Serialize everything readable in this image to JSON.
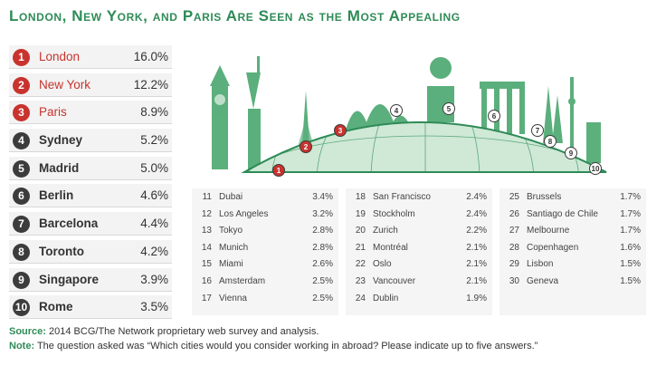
{
  "title": "London, New York, and Paris Are Seen as the Most Appealing",
  "colors": {
    "accent_green": "#2e8b57",
    "top3_red": "#c8332e",
    "badge_dark": "#3c3c3c",
    "globe_green": "#4aa76e"
  },
  "chart_data": {
    "type": "table",
    "title": "London, New York, and Paris Are Seen as the Most Appealing",
    "top_ten": [
      {
        "rank": "1",
        "city": "London",
        "pct": "16.0%",
        "value": 16.0
      },
      {
        "rank": "2",
        "city": "New York",
        "pct": "12.2%",
        "value": 12.2
      },
      {
        "rank": "3",
        "city": "Paris",
        "pct": "8.9%",
        "value": 8.9
      },
      {
        "rank": "4",
        "city": "Sydney",
        "pct": "5.2%",
        "value": 5.2
      },
      {
        "rank": "5",
        "city": "Madrid",
        "pct": "5.0%",
        "value": 5.0
      },
      {
        "rank": "6",
        "city": "Berlin",
        "pct": "4.6%",
        "value": 4.6
      },
      {
        "rank": "7",
        "city": "Barcelona",
        "pct": "4.4%",
        "value": 4.4
      },
      {
        "rank": "8",
        "city": "Toronto",
        "pct": "4.2%",
        "value": 4.2
      },
      {
        "rank": "9",
        "city": "Singapore",
        "pct": "3.9%",
        "value": 3.9
      },
      {
        "rank": "10",
        "city": "Rome",
        "pct": "3.5%",
        "value": 3.5
      }
    ],
    "more_cities": [
      [
        {
          "rank": "11",
          "city": "Dubai",
          "pct": "3.4%"
        },
        {
          "rank": "12",
          "city": "Los Angeles",
          "pct": "3.2%"
        },
        {
          "rank": "13",
          "city": "Tokyo",
          "pct": "2.8%"
        },
        {
          "rank": "14",
          "city": "Munich",
          "pct": "2.8%"
        },
        {
          "rank": "15",
          "city": "Miami",
          "pct": "2.6%"
        },
        {
          "rank": "16",
          "city": "Amsterdam",
          "pct": "2.5%"
        },
        {
          "rank": "17",
          "city": "Vienna",
          "pct": "2.5%"
        }
      ],
      [
        {
          "rank": "18",
          "city": "San Francisco",
          "pct": "2.4%"
        },
        {
          "rank": "19",
          "city": "Stockholm",
          "pct": "2.4%"
        },
        {
          "rank": "20",
          "city": "Zurich",
          "pct": "2.2%"
        },
        {
          "rank": "21",
          "city": "Montréal",
          "pct": "2.1%"
        },
        {
          "rank": "22",
          "city": "Oslo",
          "pct": "2.1%"
        },
        {
          "rank": "23",
          "city": "Vancouver",
          "pct": "2.1%"
        },
        {
          "rank": "24",
          "city": "Dublin",
          "pct": "1.9%"
        }
      ],
      [
        {
          "rank": "25",
          "city": "Brussels",
          "pct": "1.7%"
        },
        {
          "rank": "26",
          "city": "Santiago de Chile",
          "pct": "1.7%"
        },
        {
          "rank": "27",
          "city": "Melbourne",
          "pct": "1.7%"
        },
        {
          "rank": "28",
          "city": "Copenhagen",
          "pct": "1.6%"
        },
        {
          "rank": "29",
          "city": "Lisbon",
          "pct": "1.5%"
        },
        {
          "rank": "30",
          "city": "Geneva",
          "pct": "1.5%"
        }
      ]
    ]
  },
  "globe_markers": [
    "1",
    "2",
    "3",
    "4",
    "5",
    "6",
    "7",
    "8",
    "9",
    "10"
  ],
  "source": {
    "label": "Source:",
    "text": " 2014 BCG/The Network proprietary web survey and analysis."
  },
  "note": {
    "label": "Note:",
    "text": " The question asked was “Which cities would you consider working in abroad? Please indicate up to five answers.”"
  }
}
